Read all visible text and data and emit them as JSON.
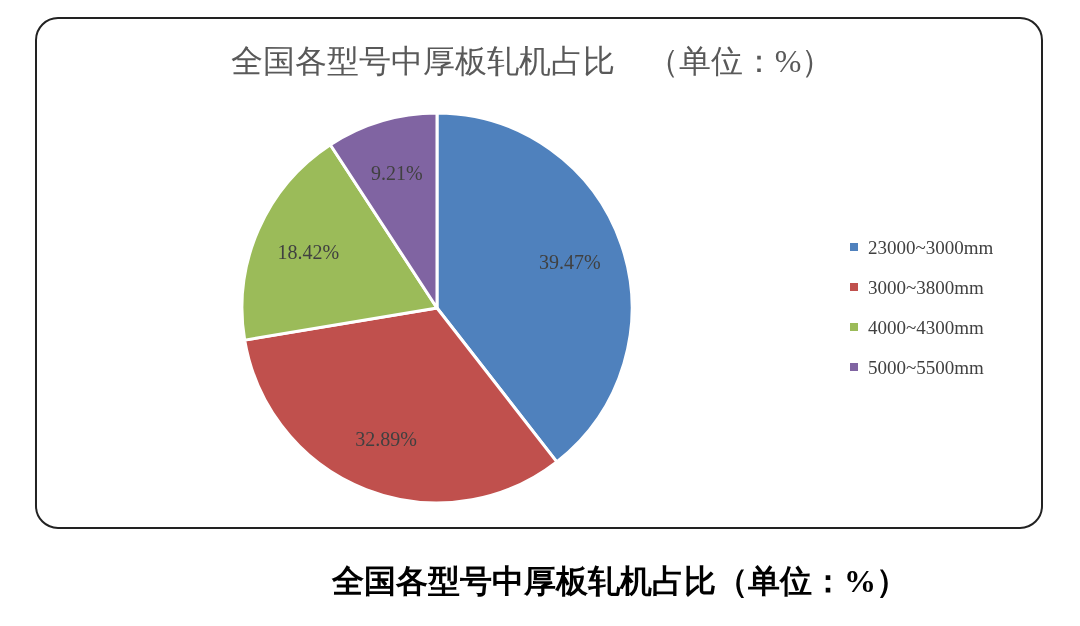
{
  "chart_data": {
    "type": "pie",
    "title": "全国各型号中厚板轧机占比　（单位：%）",
    "categories": [
      "23000~3000mm",
      "3000~3800mm",
      "4000~4300mm",
      "5000~5500mm"
    ],
    "values": [
      39.47,
      32.89,
      18.42,
      9.21
    ],
    "colors": [
      "#4f81bd",
      "#c0504d",
      "#9bbb59",
      "#8064a2"
    ],
    "value_labels": [
      "39.47%",
      "32.89%",
      "18.42%",
      "9.21%"
    ],
    "legend": "right",
    "annotations": [
      "全国各型号中厚板轧机占比（单位：%）"
    ]
  }
}
